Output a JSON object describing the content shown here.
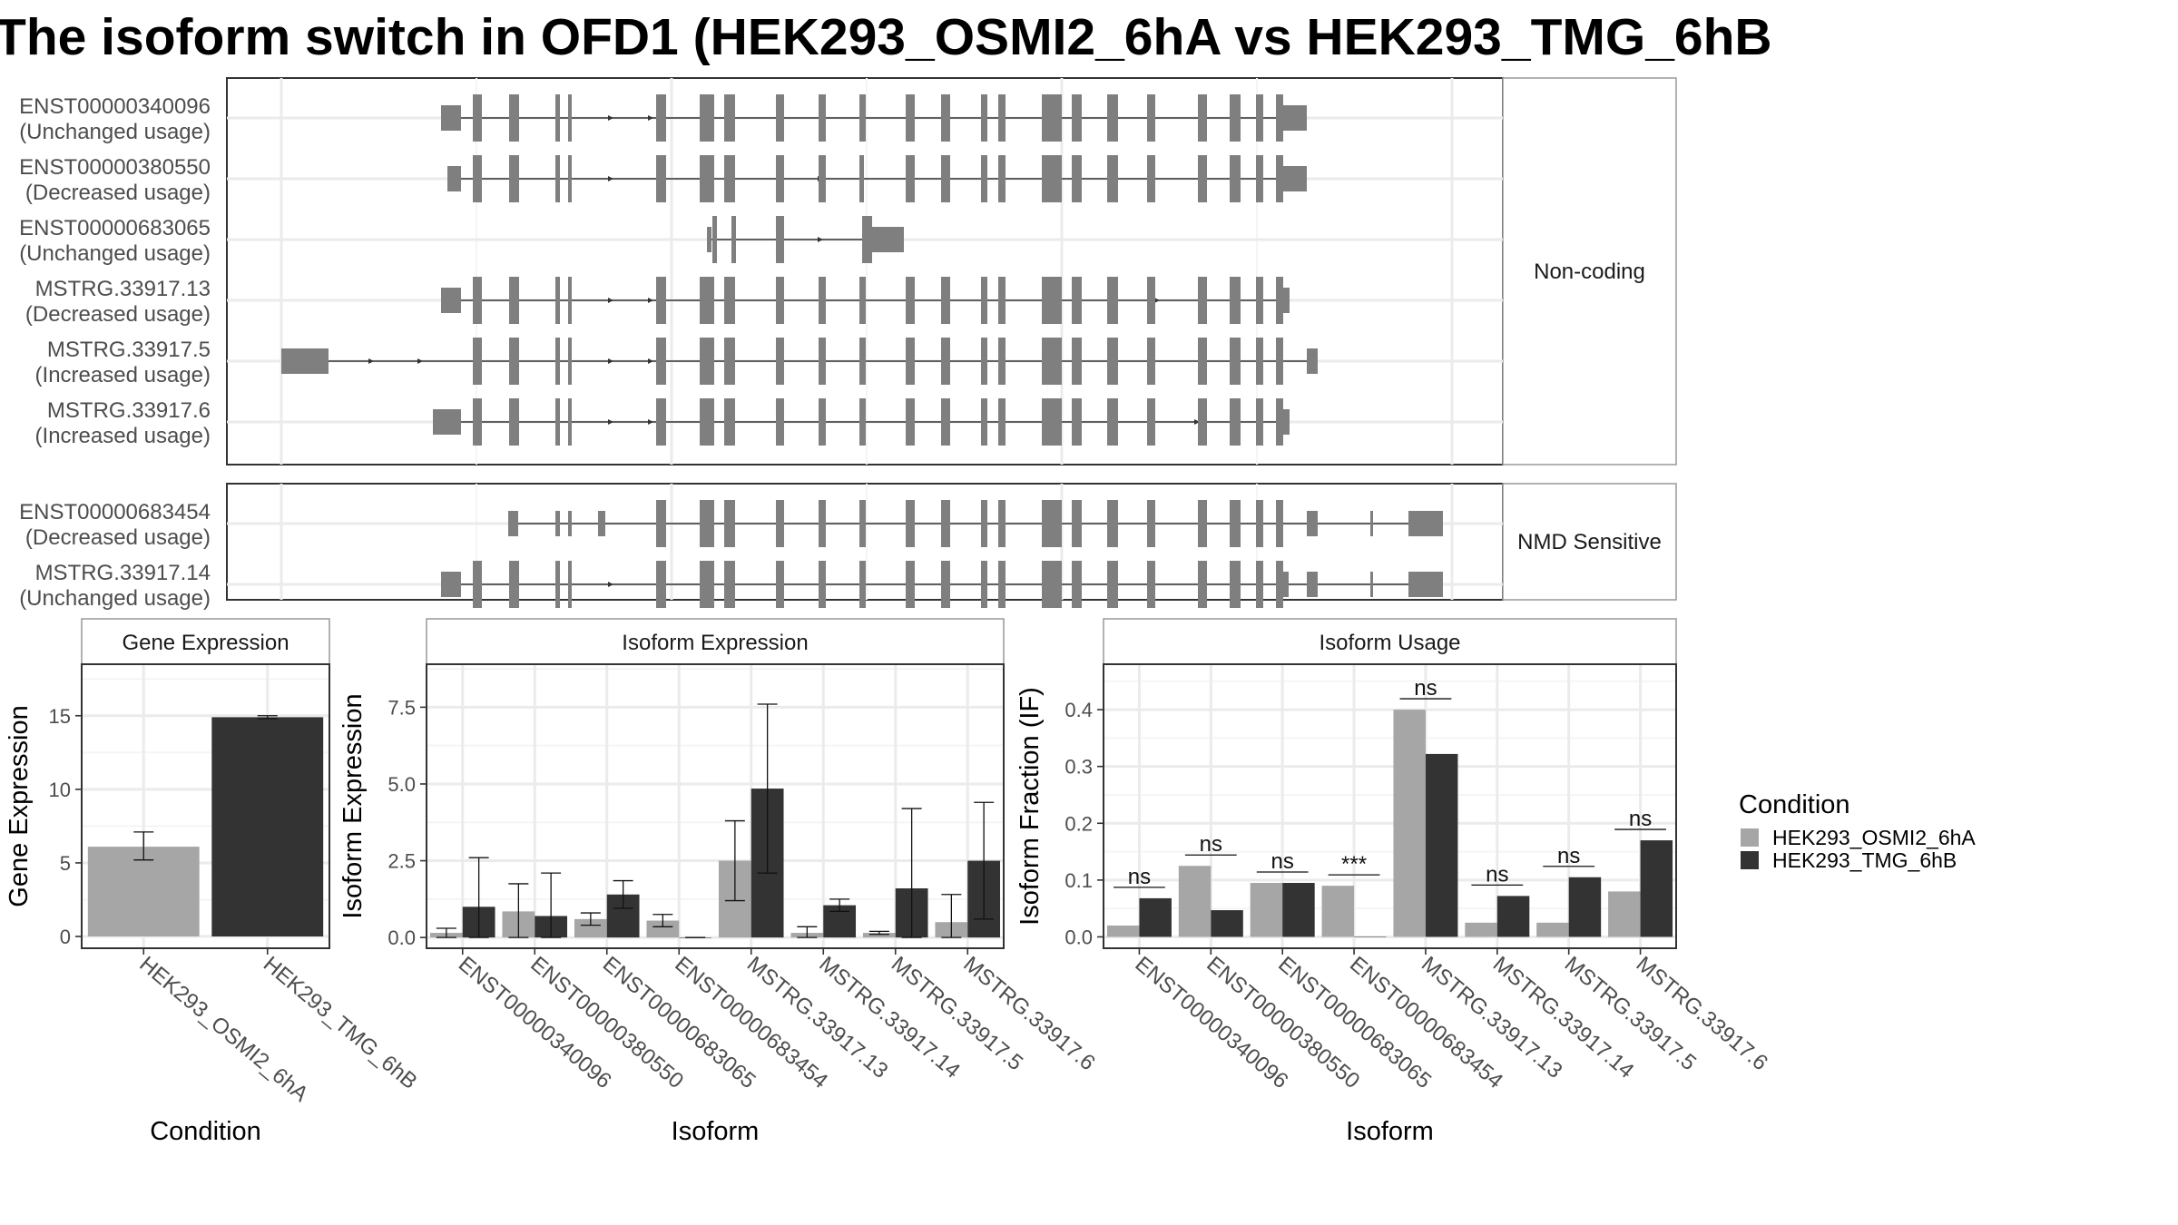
{
  "title": "The isoform switch in OFD1 (HEK293_OSMI2_6hA vs HEK293_TMG_6hB",
  "colors": {
    "exon": "#7f7f7f",
    "cond_a": "#a6a6a6",
    "cond_b": "#333333",
    "grid_major": "#ebebeb",
    "grid_minor": "#f5f5f5",
    "frame": "#333333"
  },
  "structure": {
    "groups": [
      {
        "label": "Non-coding",
        "isoforms": [
          {
            "id": "ENST00000340096",
            "usage": "(Unchanged usage)"
          },
          {
            "id": "ENST00000380550",
            "usage": "(Decreased usage)"
          },
          {
            "id": "ENST00000683065",
            "usage": "(Unchanged usage)"
          },
          {
            "id": "MSTRG.33917.13",
            "usage": "(Decreased usage)"
          },
          {
            "id": "MSTRG.33917.5",
            "usage": "(Increased usage)"
          },
          {
            "id": "MSTRG.33917.6",
            "usage": "(Increased usage)"
          }
        ]
      },
      {
        "label": "NMD Sensitive",
        "isoforms": [
          {
            "id": "ENST00000683454",
            "usage": "(Decreased usage)"
          },
          {
            "id": "MSTRG.33917.14",
            "usage": "(Unchanged usage)"
          }
        ]
      }
    ]
  },
  "chart_data": [
    {
      "type": "bar",
      "title": "Gene Expression",
      "xlabel": "Condition",
      "ylabel": "Gene Expression",
      "ylim": [
        -0.8,
        18.5
      ],
      "yticks": [
        0,
        5,
        10,
        15
      ],
      "categories": [
        "HEK293_OSMI2_6hA",
        "HEK293_TMG_6hB"
      ],
      "values": [
        6.1,
        14.9
      ],
      "errors": [
        [
          5.2,
          7.1
        ],
        [
          14.8,
          15.0
        ]
      ]
    },
    {
      "type": "bar",
      "title": "Isoform Expression",
      "xlabel": "Isoform",
      "ylabel": "Isoform Expression",
      "ylim": [
        -0.35,
        8.9
      ],
      "yticks": [
        0.0,
        2.5,
        5.0,
        7.5
      ],
      "categories": [
        "ENST00000340096",
        "ENST00000380550",
        "ENST00000683065",
        "ENST00000683454",
        "MSTRG.33917.13",
        "MSTRG.33917.14",
        "MSTRG.33917.5",
        "MSTRG.33917.6"
      ],
      "series": [
        {
          "name": "HEK293_OSMI2_6hA",
          "values": [
            0.15,
            0.85,
            0.6,
            0.55,
            2.5,
            0.15,
            0.15,
            0.5
          ],
          "errors": [
            [
              0.0,
              0.3
            ],
            [
              0.0,
              1.75
            ],
            [
              0.4,
              0.8
            ],
            [
              0.35,
              0.75
            ],
            [
              1.2,
              3.8
            ],
            [
              0.0,
              0.35
            ],
            [
              0.1,
              0.2
            ],
            [
              0.0,
              1.4
            ]
          ]
        },
        {
          "name": "HEK293_TMG_6hB",
          "values": [
            1.0,
            0.7,
            1.4,
            0.0,
            4.85,
            1.05,
            1.6,
            2.5
          ],
          "errors": [
            [
              0.0,
              2.6
            ],
            [
              0.0,
              2.1
            ],
            [
              0.95,
              1.85
            ],
            [
              0.0,
              0.0
            ],
            [
              2.1,
              7.6
            ],
            [
              0.85,
              1.25
            ],
            [
              0.0,
              4.2
            ],
            [
              0.6,
              4.4
            ]
          ]
        }
      ]
    },
    {
      "type": "bar",
      "title": "Isoform Usage",
      "xlabel": "Isoform",
      "ylabel": "Isoform Fraction (IF)",
      "ylim": [
        -0.02,
        0.48
      ],
      "yticks": [
        0.0,
        0.1,
        0.2,
        0.3,
        0.4
      ],
      "categories": [
        "ENST00000340096",
        "ENST00000380550",
        "ENST00000683065",
        "ENST00000683454",
        "MSTRG.33917.13",
        "MSTRG.33917.14",
        "MSTRG.33917.5",
        "MSTRG.33917.6"
      ],
      "series": [
        {
          "name": "HEK293_OSMI2_6hA",
          "values": [
            0.02,
            0.125,
            0.095,
            0.09,
            0.4,
            0.025,
            0.025,
            0.08
          ]
        },
        {
          "name": "HEK293_TMG_6hB",
          "values": [
            0.068,
            0.047,
            0.095,
            0.0,
            0.322,
            0.072,
            0.105,
            0.17
          ]
        }
      ],
      "significance": [
        "ns",
        "ns",
        "ns",
        "***",
        "ns",
        "ns",
        "ns",
        "ns"
      ]
    }
  ],
  "legend": {
    "title": "Condition",
    "entries": [
      "HEK293_OSMI2_6hA",
      "HEK293_TMG_6hB"
    ]
  }
}
